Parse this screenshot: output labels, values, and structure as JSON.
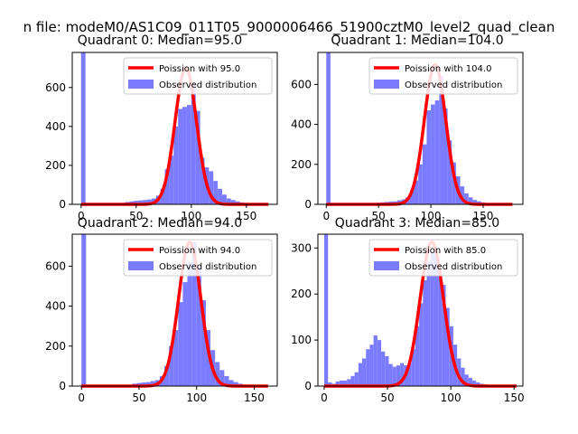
{
  "figure_title": "n file: modeM0/AS1C09_011T05_9000006466_51900cztM0_level2_quad_clean",
  "colors": {
    "hist": "#7b7bff",
    "fit": "#ff0000",
    "axis": "#000000"
  },
  "chart_data": [
    {
      "type": "bar",
      "title": "Quadrant 0: Median=95.0",
      "xlim": [
        -8,
        178
      ],
      "ylim": [
        0,
        780
      ],
      "xticks": [
        0,
        50,
        100,
        150
      ],
      "yticks": [
        0,
        200,
        400,
        600
      ],
      "legend": {
        "position": "top-right",
        "fit_label": "Poission with 95.0",
        "hist_label": "Observed distribution"
      },
      "histogram": {
        "bin_width": 4,
        "bins": [
          {
            "x": 0,
            "count": 780
          },
          {
            "x": 40,
            "count": 12
          },
          {
            "x": 44,
            "count": 15
          },
          {
            "x": 48,
            "count": 18
          },
          {
            "x": 52,
            "count": 20
          },
          {
            "x": 56,
            "count": 22
          },
          {
            "x": 60,
            "count": 25
          },
          {
            "x": 64,
            "count": 30
          },
          {
            "x": 68,
            "count": 45
          },
          {
            "x": 72,
            "count": 80
          },
          {
            "x": 76,
            "count": 180
          },
          {
            "x": 80,
            "count": 250
          },
          {
            "x": 84,
            "count": 400
          },
          {
            "x": 88,
            "count": 490
          },
          {
            "x": 92,
            "count": 500
          },
          {
            "x": 96,
            "count": 510
          },
          {
            "x": 100,
            "count": 630
          },
          {
            "x": 104,
            "count": 480
          },
          {
            "x": 108,
            "count": 240
          },
          {
            "x": 112,
            "count": 190
          },
          {
            "x": 116,
            "count": 170
          },
          {
            "x": 120,
            "count": 120
          },
          {
            "x": 124,
            "count": 80
          },
          {
            "x": 128,
            "count": 50
          },
          {
            "x": 132,
            "count": 30
          },
          {
            "x": 136,
            "count": 22
          },
          {
            "x": 140,
            "count": 15
          },
          {
            "x": 144,
            "count": 10
          },
          {
            "x": 148,
            "count": 6
          }
        ]
      },
      "fit": {
        "mu": 95.0,
        "peak": 700,
        "x_range": [
          0,
          170
        ]
      }
    },
    {
      "type": "bar",
      "title": "Quadrant 1: Median=104.0",
      "xlim": [
        -8,
        188
      ],
      "ylim": [
        0,
        760
      ],
      "xticks": [
        0,
        50,
        100,
        150
      ],
      "yticks": [
        0,
        200,
        400,
        600
      ],
      "legend": {
        "position": "top-right",
        "fit_label": "Poission with 104.0",
        "hist_label": "Observed distribution"
      },
      "histogram": {
        "bin_width": 4,
        "bins": [
          {
            "x": 0,
            "count": 760
          },
          {
            "x": 48,
            "count": 8
          },
          {
            "x": 52,
            "count": 10
          },
          {
            "x": 56,
            "count": 12
          },
          {
            "x": 60,
            "count": 14
          },
          {
            "x": 64,
            "count": 15
          },
          {
            "x": 68,
            "count": 20
          },
          {
            "x": 72,
            "count": 25
          },
          {
            "x": 76,
            "count": 35
          },
          {
            "x": 80,
            "count": 70
          },
          {
            "x": 84,
            "count": 120
          },
          {
            "x": 88,
            "count": 200
          },
          {
            "x": 92,
            "count": 300
          },
          {
            "x": 96,
            "count": 470
          },
          {
            "x": 100,
            "count": 500
          },
          {
            "x": 104,
            "count": 520
          },
          {
            "x": 108,
            "count": 640
          },
          {
            "x": 112,
            "count": 480
          },
          {
            "x": 116,
            "count": 320
          },
          {
            "x": 120,
            "count": 210
          },
          {
            "x": 124,
            "count": 140
          },
          {
            "x": 128,
            "count": 90
          },
          {
            "x": 132,
            "count": 55
          },
          {
            "x": 136,
            "count": 35
          },
          {
            "x": 140,
            "count": 22
          },
          {
            "x": 144,
            "count": 15
          },
          {
            "x": 148,
            "count": 10
          }
        ]
      },
      "fit": {
        "mu": 104.0,
        "peak": 700,
        "x_range": [
          0,
          178
        ]
      }
    },
    {
      "type": "bar",
      "title": "Quadrant 2: Median=94.0",
      "xlim": [
        -8,
        170
      ],
      "ylim": [
        0,
        760
      ],
      "xticks": [
        0,
        50,
        100,
        150
      ],
      "yticks": [
        0,
        200,
        400,
        600
      ],
      "legend": {
        "position": "top-right",
        "fit_label": "Poission with 94.0",
        "hist_label": "Observed distribution"
      },
      "histogram": {
        "bin_width": 4,
        "bins": [
          {
            "x": 0,
            "count": 760
          },
          {
            "x": 44,
            "count": 12
          },
          {
            "x": 48,
            "count": 15
          },
          {
            "x": 52,
            "count": 18
          },
          {
            "x": 56,
            "count": 20
          },
          {
            "x": 60,
            "count": 25
          },
          {
            "x": 64,
            "count": 30
          },
          {
            "x": 68,
            "count": 50
          },
          {
            "x": 72,
            "count": 100
          },
          {
            "x": 76,
            "count": 200
          },
          {
            "x": 80,
            "count": 280
          },
          {
            "x": 84,
            "count": 420
          },
          {
            "x": 88,
            "count": 520
          },
          {
            "x": 92,
            "count": 620
          },
          {
            "x": 96,
            "count": 720
          },
          {
            "x": 100,
            "count": 600
          },
          {
            "x": 104,
            "count": 430
          },
          {
            "x": 108,
            "count": 280
          },
          {
            "x": 112,
            "count": 180
          },
          {
            "x": 116,
            "count": 120
          },
          {
            "x": 120,
            "count": 80
          },
          {
            "x": 124,
            "count": 50
          },
          {
            "x": 128,
            "count": 30
          },
          {
            "x": 132,
            "count": 20
          },
          {
            "x": 136,
            "count": 12
          },
          {
            "x": 140,
            "count": 8
          }
        ]
      },
      "fit": {
        "mu": 94.0,
        "peak": 720,
        "x_range": [
          0,
          162
        ]
      }
    },
    {
      "type": "bar",
      "title": "Quadrant 3: Median=85.0",
      "xlim": [
        -5,
        157
      ],
      "ylim": [
        0,
        330
      ],
      "xticks": [
        0,
        50,
        100,
        150
      ],
      "yticks": [
        0,
        100,
        200,
        300
      ],
      "legend": {
        "position": "top-right",
        "fit_label": "Poission with 85.0",
        "hist_label": "Observed distribution"
      },
      "histogram": {
        "bin_width": 3,
        "bins": [
          {
            "x": 0,
            "count": 330
          },
          {
            "x": 3,
            "count": 8
          },
          {
            "x": 6,
            "count": 5
          },
          {
            "x": 9,
            "count": 10
          },
          {
            "x": 12,
            "count": 12
          },
          {
            "x": 15,
            "count": 12
          },
          {
            "x": 18,
            "count": 15
          },
          {
            "x": 21,
            "count": 22
          },
          {
            "x": 24,
            "count": 30
          },
          {
            "x": 27,
            "count": 50
          },
          {
            "x": 30,
            "count": 60
          },
          {
            "x": 33,
            "count": 80
          },
          {
            "x": 36,
            "count": 90
          },
          {
            "x": 39,
            "count": 110
          },
          {
            "x": 42,
            "count": 100
          },
          {
            "x": 45,
            "count": 75
          },
          {
            "x": 48,
            "count": 65
          },
          {
            "x": 51,
            "count": 48
          },
          {
            "x": 54,
            "count": 42
          },
          {
            "x": 57,
            "count": 45
          },
          {
            "x": 60,
            "count": 50
          },
          {
            "x": 63,
            "count": 45
          },
          {
            "x": 66,
            "count": 50
          },
          {
            "x": 69,
            "count": 80
          },
          {
            "x": 72,
            "count": 130
          },
          {
            "x": 75,
            "count": 180
          },
          {
            "x": 78,
            "count": 230
          },
          {
            "x": 81,
            "count": 270
          },
          {
            "x": 84,
            "count": 290
          },
          {
            "x": 87,
            "count": 285
          },
          {
            "x": 90,
            "count": 250
          },
          {
            "x": 93,
            "count": 220
          },
          {
            "x": 96,
            "count": 170
          },
          {
            "x": 99,
            "count": 130
          },
          {
            "x": 102,
            "count": 90
          },
          {
            "x": 105,
            "count": 60
          },
          {
            "x": 108,
            "count": 40
          },
          {
            "x": 111,
            "count": 25
          },
          {
            "x": 114,
            "count": 18
          },
          {
            "x": 117,
            "count": 12
          },
          {
            "x": 120,
            "count": 8
          },
          {
            "x": 123,
            "count": 5
          },
          {
            "x": 126,
            "count": 4
          },
          {
            "x": 129,
            "count": 3
          }
        ]
      },
      "fit": {
        "mu": 85.0,
        "peak": 313,
        "x_range": [
          0,
          152
        ]
      }
    }
  ]
}
